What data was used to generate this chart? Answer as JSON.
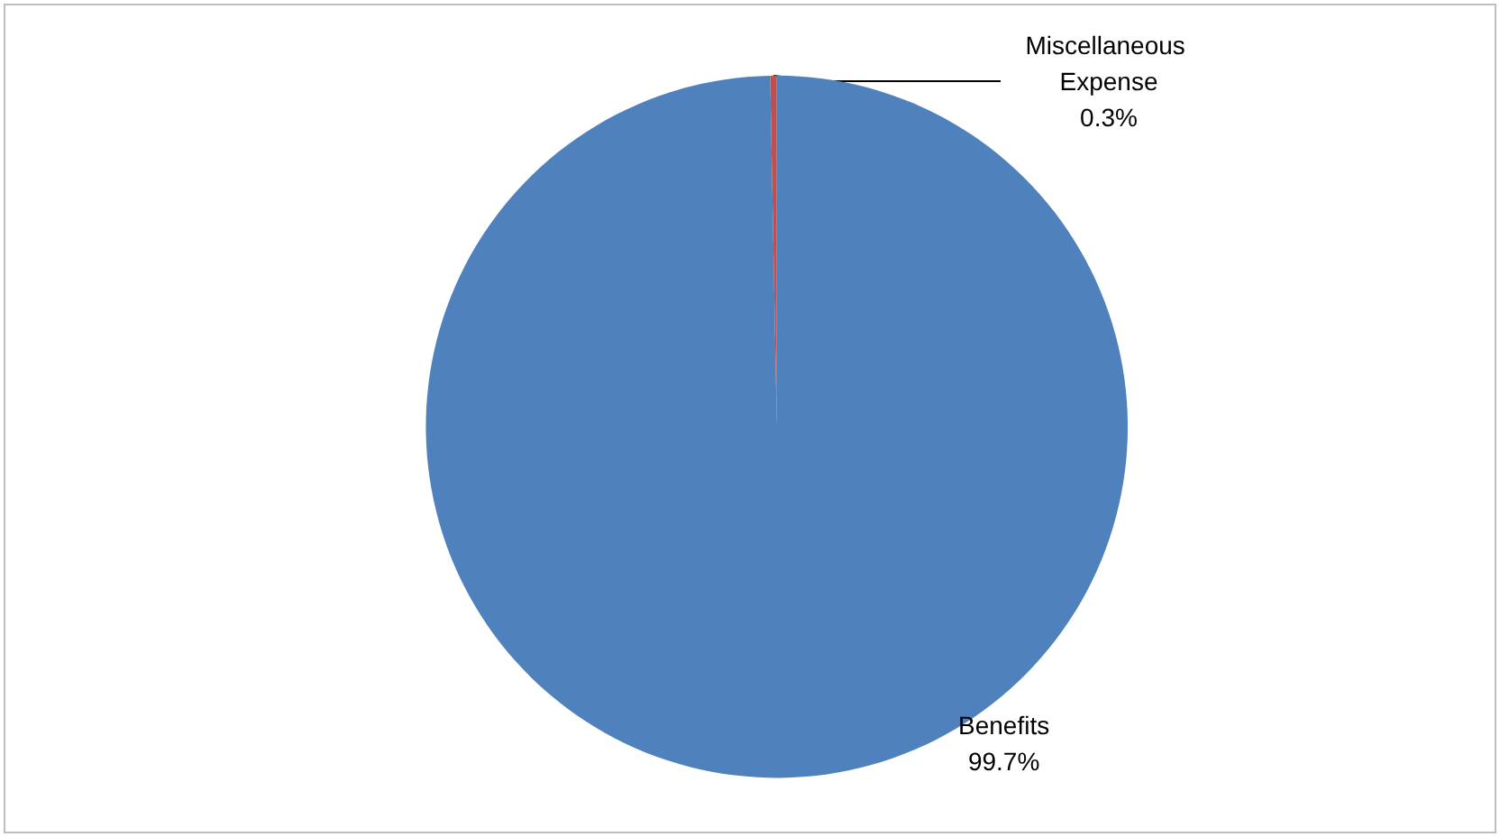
{
  "chart_data": {
    "type": "pie",
    "categories": [
      "Benefits",
      "Miscellaneous Expense"
    ],
    "values": [
      99.7,
      0.3
    ],
    "colors": [
      "#4f81bd",
      "#c0504d"
    ],
    "value_labels": [
      "99.7%",
      "0.3%"
    ],
    "legend": false
  }
}
